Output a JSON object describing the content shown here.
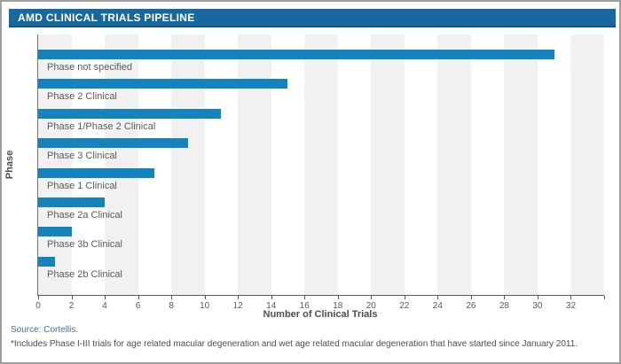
{
  "window": {
    "title": "AMD CLINICAL TRIALS PIPELINE"
  },
  "chart_data": {
    "type": "bar",
    "orientation": "horizontal",
    "title": "AMD CLINICAL TRIALS PIPELINE",
    "categories": [
      "Phase not specified",
      "Phase 2 Clinical",
      "Phase 1/Phase 2 Clinical",
      "Phase 3 Clinical",
      "Phase 1 Clinical",
      "Phase 2a Clinical",
      "Phase 3b Clinical",
      "Phase 2b Clinical"
    ],
    "values": [
      31,
      15,
      11,
      9,
      7,
      4,
      2,
      1
    ],
    "xlabel": "Number of Clinical Trials",
    "ylabel": "Phase",
    "xlim": [
      0,
      34
    ],
    "xticks": [
      0,
      2,
      4,
      6,
      8,
      10,
      12,
      14,
      16,
      18,
      20,
      22,
      24,
      26,
      28,
      30,
      32
    ],
    "grid": "vertical-stripe-bands-every-2-units",
    "legend": "none",
    "bar_label_position": "below-bar"
  },
  "footer": {
    "source": "Source: Cortellis.",
    "footnote": "*Includes Phase I-III trials for age related macular degeneration and wet age related macular degeneration that have started since January 2011."
  },
  "colors": {
    "bar": "#1584bd",
    "title_bg": "#17689c",
    "title_border": "#0f5580",
    "stripe": "#f1f1f1",
    "axis": "#595959",
    "source_text": "#466f8d",
    "footnote_text": "#4d4d4d"
  }
}
